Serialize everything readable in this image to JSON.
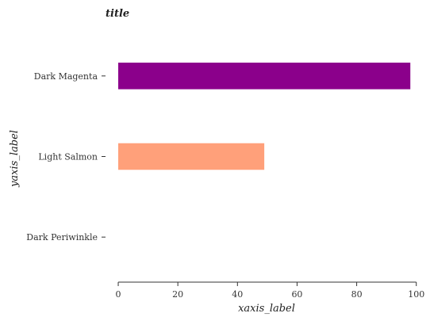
{
  "chart_data": {
    "type": "bar",
    "orientation": "horizontal",
    "title": "title",
    "xlabel": "xaxis_label",
    "ylabel": "yaxis_label",
    "categories": [
      "Dark Periwinkle",
      "Light Salmon",
      "Dark Magenta"
    ],
    "values": [
      0,
      49,
      98
    ],
    "colors": [
      "#4b4bc8",
      "#ffa07a",
      "#8b008b"
    ],
    "xlim": [
      -4,
      103
    ],
    "xticks": [
      0,
      20,
      40,
      60,
      80,
      100
    ],
    "grid": false,
    "legend": "none"
  }
}
